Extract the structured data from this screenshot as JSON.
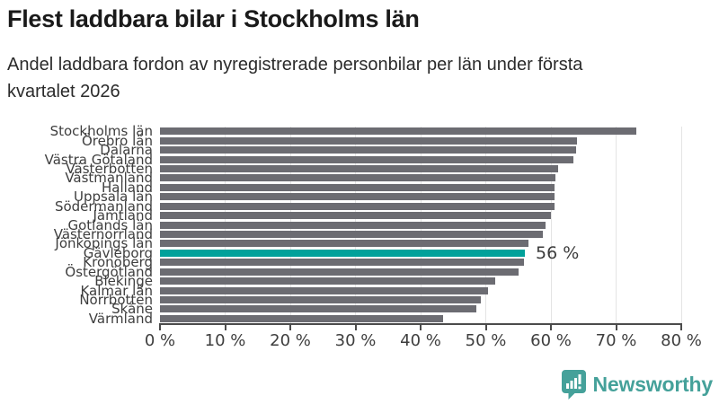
{
  "header": {
    "title": "Flest laddbara bilar i Stockholms län",
    "subtitle_line1": "Andel laddbara fordon av nyregistrerade personbilar per län under första",
    "subtitle_line2": "kvartalet 2026"
  },
  "chart_data": {
    "type": "bar",
    "orientation": "horizontal",
    "categories": [
      "Stockholms län",
      "Örebro län",
      "Dalarna",
      "Västra Götaland",
      "Västerbotten",
      "Västmanland",
      "Halland",
      "Uppsala län",
      "Södermanland",
      "Jämtland",
      "Gotlands län",
      "Västernorrland",
      "Jönköpings län",
      "Gävleborg",
      "Kronoberg",
      "Östergötland",
      "Blekinge",
      "Kalmar län",
      "Norrbotten",
      "Skåne",
      "Värmland"
    ],
    "values": [
      73.1,
      64.0,
      63.9,
      63.5,
      61.1,
      60.7,
      60.6,
      60.6,
      60.5,
      60.0,
      59.2,
      58.7,
      56.5,
      56.0,
      55.8,
      55.0,
      51.4,
      50.4,
      49.2,
      48.6,
      43.4
    ],
    "highlight_category": "Gävleborg",
    "highlight_value_label": "56 %",
    "xlim": [
      0,
      80
    ],
    "x_tick_values": [
      0,
      10,
      20,
      30,
      40,
      50,
      60,
      70,
      80
    ],
    "x_tick_labels": [
      "0 %",
      "10 %",
      "20 %",
      "30 %",
      "40 %",
      "50 %",
      "60 %",
      "70 %",
      "80 %"
    ],
    "grid": true,
    "legend": "none",
    "bar_color": "#6c6c72",
    "highlight_color": "#00a19a",
    "grid_color": "#e4e4e4",
    "axis_color": "#4b4b4b"
  },
  "footer": {
    "brand": "Newsworthy",
    "brand_color": "#45a19a",
    "logo_icon": "bar-chart-speech-bubble-icon"
  }
}
